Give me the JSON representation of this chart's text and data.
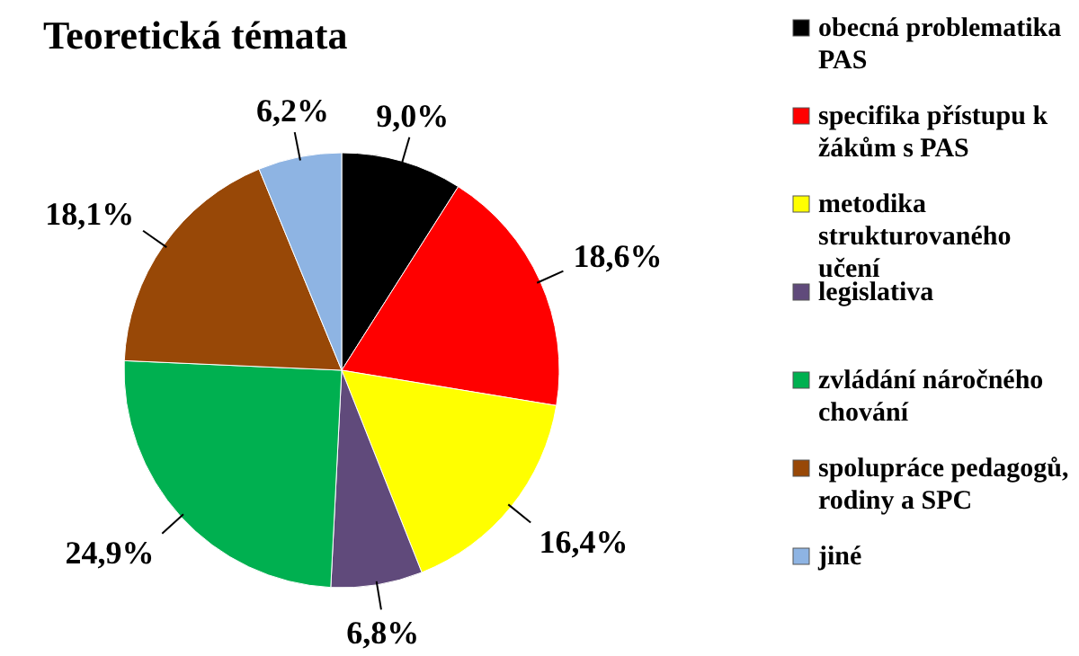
{
  "chart_data": {
    "type": "pie",
    "title": "Teoretická témata",
    "categories": [
      "obecná problematika PAS",
      "specifika přístupu k žákům s PAS",
      "metodika strukturovaného učení",
      "legislativa",
      "zvládání náročného chování",
      "spolupráce pedagogů, rodiny a SPC",
      "jiné"
    ],
    "values": [
      9.0,
      18.6,
      16.4,
      6.8,
      24.9,
      18.1,
      6.2
    ],
    "value_labels": [
      "9,0%",
      "18,6%",
      "16,4%",
      "6,8%",
      "24,9%",
      "18,1%",
      "6,2%"
    ],
    "colors": [
      "#000000",
      "#ff0000",
      "#ffff00",
      "#604a7b",
      "#00b050",
      "#984807",
      "#8eb4e3"
    ],
    "legend": "right"
  }
}
